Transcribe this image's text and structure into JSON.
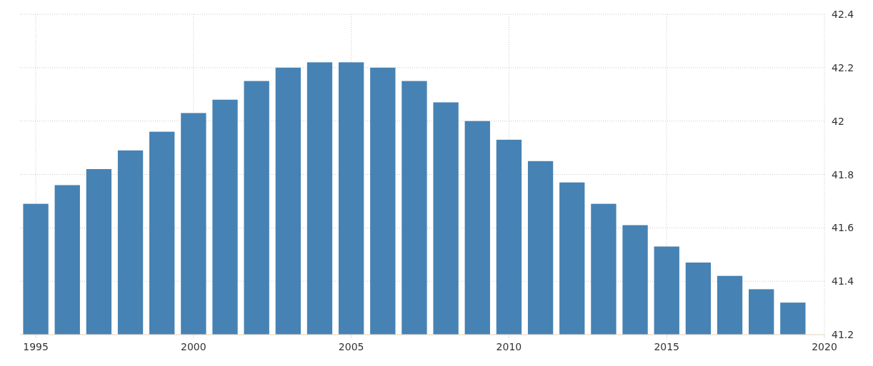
{
  "chart_data": {
    "type": "bar",
    "x": [
      1995,
      1996,
      1997,
      1998,
      1999,
      2000,
      2001,
      2002,
      2003,
      2004,
      2005,
      2006,
      2007,
      2008,
      2009,
      2010,
      2011,
      2012,
      2013,
      2014,
      2015,
      2016,
      2017,
      2018,
      2019
    ],
    "values": [
      41.69,
      41.76,
      41.82,
      41.89,
      41.96,
      42.03,
      42.08,
      42.15,
      42.2,
      42.22,
      42.22,
      42.2,
      42.15,
      42.07,
      42.0,
      41.93,
      41.85,
      41.77,
      41.69,
      41.61,
      41.53,
      41.47,
      41.42,
      41.37,
      41.32
    ],
    "color": "#4682b4",
    "xlim": [
      1994.5,
      2020
    ],
    "xticks": [
      1995,
      2000,
      2005,
      2010,
      2015,
      2020
    ],
    "ylim": [
      41.2,
      42.4
    ],
    "yticks": [
      41.2,
      41.4,
      41.6,
      41.8,
      42,
      42.2,
      42.4
    ],
    "grid": true
  }
}
